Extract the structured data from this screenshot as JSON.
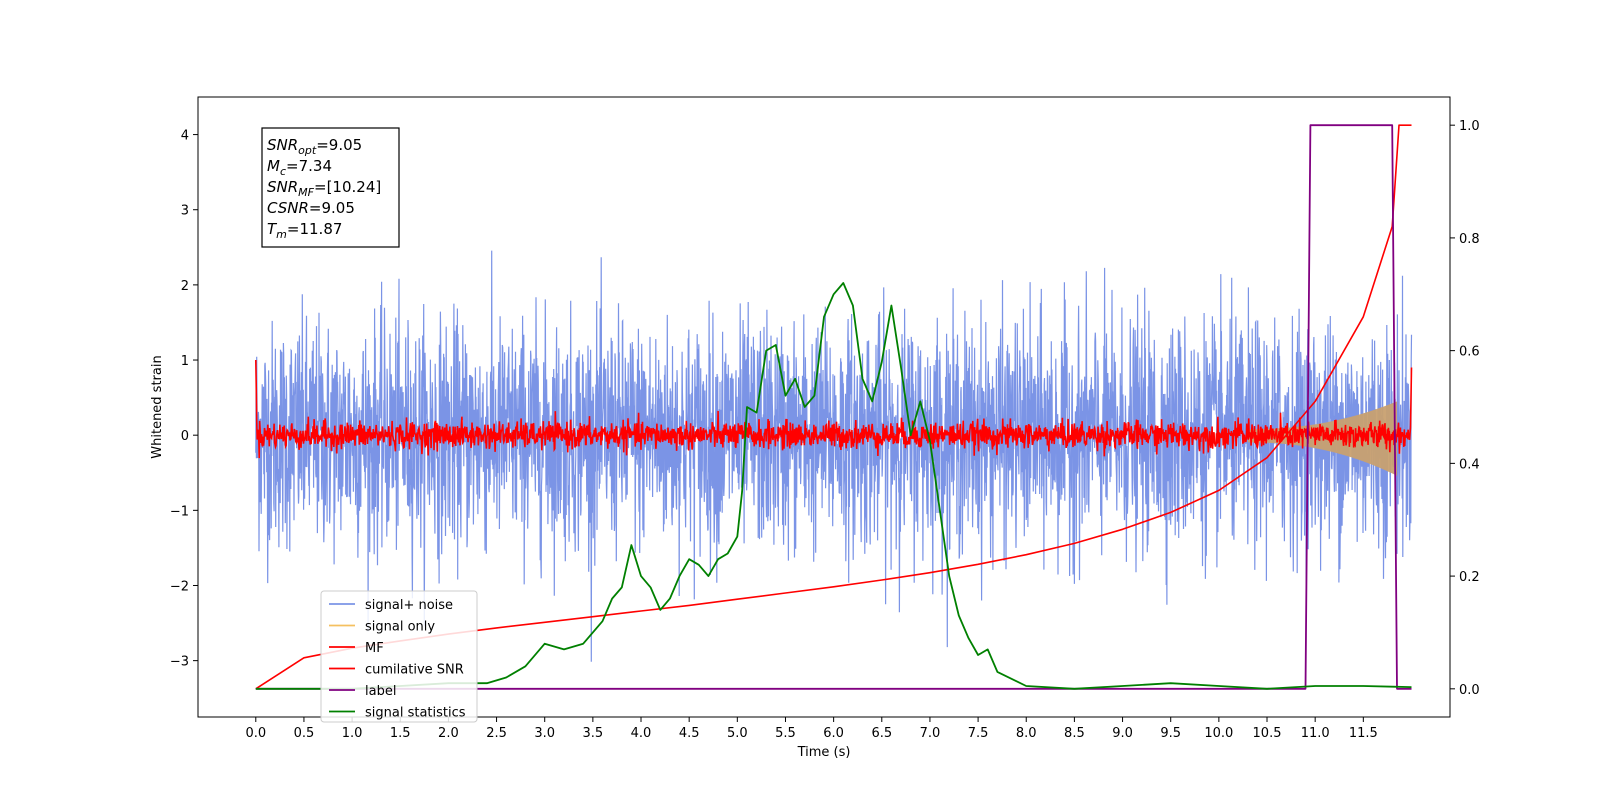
{
  "chart_data": {
    "type": "line",
    "title": "",
    "xlabel": "Time (s)",
    "ylabel": "Whitened strain",
    "xlim": [
      -0.6,
      12.4
    ],
    "ylim_left": [
      -3.75,
      4.5
    ],
    "ylim_right": [
      -0.05,
      1.05
    ],
    "x_ticks": [
      "0.0",
      "0.5",
      "1.0",
      "1.5",
      "2.0",
      "2.5",
      "3.0",
      "3.5",
      "4.0",
      "4.5",
      "5.0",
      "5.5",
      "6.0",
      "6.5",
      "7.0",
      "7.5",
      "8.0",
      "8.5",
      "9.0",
      "9.5",
      "10.0",
      "10.5",
      "11.0",
      "11.5"
    ],
    "y_ticks_left": [
      "−3",
      "−2",
      "−1",
      "0",
      "1",
      "2",
      "3",
      "4"
    ],
    "y_ticks_right": [
      "0.0",
      "0.2",
      "0.4",
      "0.6",
      "0.8",
      "1.0"
    ],
    "grid": false,
    "legend_position": "lower-left",
    "info_box": {
      "lines": [
        {
          "name": "SNR",
          "sub": "opt",
          "value": "=9.05"
        },
        {
          "name": "M",
          "sub": "c",
          "value": "=7.34"
        },
        {
          "name": "SNR",
          "sub": "MF",
          "value": "=[10.24]"
        },
        {
          "name": "CSNR",
          "sub": "",
          "value": "=9.05"
        },
        {
          "name": "T",
          "sub": "m",
          "value": "=11.87"
        }
      ]
    },
    "series": [
      {
        "name": "signal+ noise",
        "color": "#7b94e6",
        "axis": "left",
        "kind": "noise",
        "x_range": [
          0,
          12
        ],
        "amplitude_sigma": 0.75
      },
      {
        "name": "signal only",
        "color": "#f5c060",
        "axis": "left",
        "kind": "chirp",
        "x_range": [
          10.3,
          12
        ],
        "peak_envelope": 0.45
      },
      {
        "name": "MF",
        "color": "#ff0000",
        "axis": "left",
        "kind": "noise",
        "x_range": [
          0,
          12
        ],
        "amplitude_sigma": 0.09
      },
      {
        "name": "cumilative SNR",
        "color": "#ff0000",
        "axis": "right",
        "x": [
          0.0,
          0.5,
          1.0,
          1.5,
          2.0,
          2.5,
          3.0,
          3.5,
          4.0,
          4.5,
          5.0,
          5.5,
          6.0,
          6.5,
          7.0,
          7.5,
          8.0,
          8.5,
          9.0,
          9.5,
          10.0,
          10.5,
          11.0,
          11.5,
          11.8,
          11.87,
          12.0
        ],
        "values": [
          0.0,
          0.055,
          0.072,
          0.085,
          0.097,
          0.108,
          0.118,
          0.128,
          0.138,
          0.148,
          0.159,
          0.17,
          0.181,
          0.193,
          0.206,
          0.221,
          0.238,
          0.258,
          0.283,
          0.313,
          0.352,
          0.41,
          0.51,
          0.66,
          0.82,
          1.0,
          1.0
        ]
      },
      {
        "name": "label",
        "color": "#800080",
        "axis": "right",
        "x": [
          0.0,
          10.9,
          10.95,
          11.8,
          11.85,
          12.0
        ],
        "values": [
          0.0,
          0.0,
          1.0,
          1.0,
          0.0,
          0.0
        ]
      },
      {
        "name": "signal statistics",
        "color": "#008000",
        "axis": "right",
        "x": [
          0.0,
          1.0,
          2.0,
          2.4,
          2.6,
          2.8,
          3.0,
          3.2,
          3.4,
          3.6,
          3.7,
          3.8,
          3.9,
          4.0,
          4.1,
          4.2,
          4.3,
          4.4,
          4.5,
          4.6,
          4.7,
          4.8,
          4.9,
          5.0,
          5.05,
          5.1,
          5.2,
          5.3,
          5.4,
          5.5,
          5.6,
          5.7,
          5.8,
          5.9,
          6.0,
          6.1,
          6.2,
          6.3,
          6.4,
          6.5,
          6.6,
          6.7,
          6.8,
          6.9,
          7.0,
          7.1,
          7.2,
          7.3,
          7.4,
          7.5,
          7.6,
          7.7,
          8.0,
          8.5,
          9.0,
          9.5,
          10.0,
          10.5,
          11.0,
          11.5,
          12.0
        ],
        "values": [
          0.0,
          0.0,
          0.01,
          0.01,
          0.02,
          0.04,
          0.08,
          0.07,
          0.08,
          0.12,
          0.16,
          0.18,
          0.255,
          0.2,
          0.18,
          0.14,
          0.16,
          0.2,
          0.23,
          0.22,
          0.2,
          0.23,
          0.24,
          0.27,
          0.35,
          0.5,
          0.49,
          0.6,
          0.61,
          0.52,
          0.55,
          0.5,
          0.52,
          0.66,
          0.7,
          0.72,
          0.68,
          0.55,
          0.51,
          0.58,
          0.68,
          0.57,
          0.45,
          0.51,
          0.44,
          0.32,
          0.2,
          0.13,
          0.09,
          0.06,
          0.07,
          0.03,
          0.005,
          0.0,
          0.005,
          0.01,
          0.005,
          0.0,
          0.005,
          0.005,
          0.003
        ]
      }
    ]
  }
}
